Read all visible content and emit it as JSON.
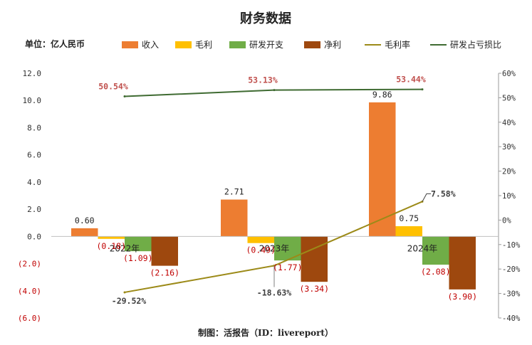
{
  "chart_data": {
    "type": "bar",
    "title": "财务数据",
    "unit_label": "单位：亿人民币",
    "source": "制图：活报告（ID：livereport）",
    "categories": [
      "2022年",
      "2023年",
      "2024年"
    ],
    "series": [
      {
        "name": "收入",
        "values": [
          0.6,
          2.71,
          9.86
        ],
        "labels": [
          "0.60",
          "2.71",
          "9.86"
        ],
        "color": "#ED7D31"
      },
      {
        "name": "毛利",
        "values": [
          -0.18,
          -0.49,
          0.75
        ],
        "labels": [
          "(0.18)",
          "(0.49)",
          "0.75"
        ],
        "color": "#FFC000"
      },
      {
        "name": "研发开支",
        "values": [
          -1.09,
          -1.77,
          -2.08
        ],
        "labels": [
          "(1.09)",
          "(1.77)",
          "(2.08)"
        ],
        "color": "#70AD47"
      },
      {
        "name": "净利",
        "values": [
          -2.16,
          -3.34,
          -3.9
        ],
        "labels": [
          "(2.16)",
          "(3.34)",
          "(3.90)"
        ],
        "color": "#9E480E"
      }
    ],
    "line_series": [
      {
        "name": "毛利率",
        "values": [
          -29.52,
          -18.63,
          7.58
        ],
        "labels": [
          "-29.52%",
          "-18.63%",
          "7.58%"
        ],
        "color": "#9C8A18",
        "axis": "right"
      },
      {
        "name": "研发占亏损比",
        "values": [
          50.54,
          53.13,
          53.44
        ],
        "labels": [
          "50.54%",
          "53.13%",
          "53.44%"
        ],
        "color": "#3F6B32",
        "axis": "right"
      }
    ],
    "y_left": {
      "min": -6,
      "max": 12,
      "ticks": [
        12,
        10,
        8,
        6,
        4,
        2,
        0,
        -2,
        -4,
        -6
      ],
      "tick_labels": [
        "12.0",
        "10.0",
        "8.0",
        "6.0",
        "4.0",
        "2.0",
        "0.0",
        "(2.0)",
        "(4.0)",
        "(6.0)"
      ]
    },
    "y_right": {
      "min": -40,
      "max": 60,
      "ticks": [
        60,
        50,
        40,
        30,
        20,
        10,
        0,
        -10,
        -20,
        -30,
        -40
      ],
      "tick_labels": [
        "60%",
        "50%",
        "40%",
        "30%",
        "20%",
        "10%",
        "0%",
        "-10%",
        "-20%",
        "-30%",
        "-40%"
      ]
    },
    "legend_position": "top",
    "grid": false,
    "colors": {
      "negative_label": "#C00000",
      "positive_label": "#222222",
      "line_label_top": "#C0504D"
    }
  }
}
